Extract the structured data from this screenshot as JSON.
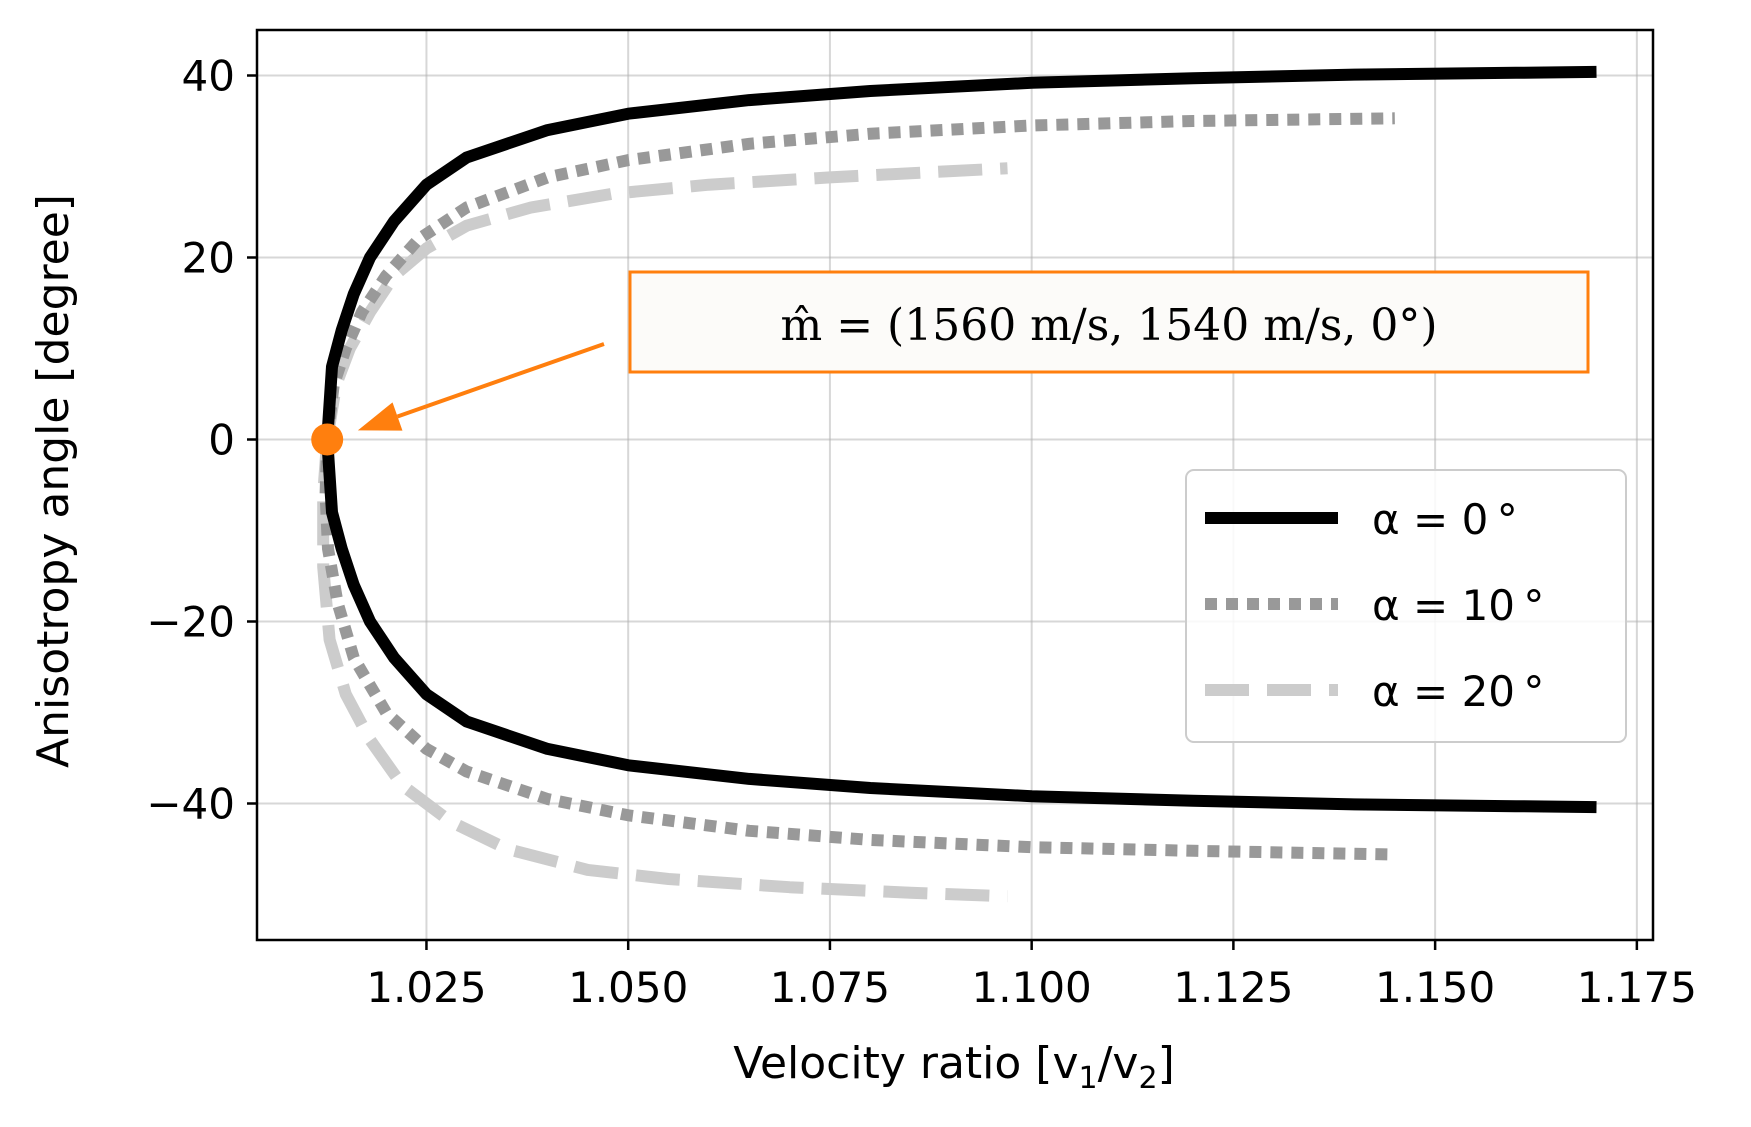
{
  "chart_data": {
    "type": "line",
    "xlabel": "Velocity ratio [v",
    "xlabel_sub1": "1",
    "xlabel_mid": "/v",
    "xlabel_sub2": "2",
    "xlabel_end": "]",
    "ylabel": "Anisotropy angle [degree]",
    "xlim": [
      1.004,
      1.177
    ],
    "ylim": [
      -55,
      45
    ],
    "xticks": [
      1.025,
      1.05,
      1.075,
      1.1,
      1.125,
      1.15,
      1.175
    ],
    "xtick_labels": [
      "1.025",
      "1.050",
      "1.075",
      "1.100",
      "1.125",
      "1.150",
      "1.175"
    ],
    "yticks": [
      40,
      20,
      0,
      -20,
      -40
    ],
    "ytick_labels": [
      "40",
      "20",
      "0",
      "−20",
      "−40"
    ],
    "grid": true,
    "legend_position": "center-right",
    "series": [
      {
        "name": "α = 0°",
        "legend_label": "α = 0 °",
        "color": "#000000",
        "style": "solid",
        "upper": {
          "x": [
            1.0127,
            1.0133,
            1.0145,
            1.016,
            1.018,
            1.021,
            1.025,
            1.03,
            1.04,
            1.05,
            1.065,
            1.08,
            1.1,
            1.12,
            1.14,
            1.16,
            1.17
          ],
          "y": [
            0,
            8,
            12,
            16,
            20,
            24,
            28,
            31,
            34,
            35.8,
            37.3,
            38.3,
            39.2,
            39.7,
            40.1,
            40.3,
            40.4
          ]
        },
        "lower": {
          "x": [
            1.0127,
            1.0133,
            1.0145,
            1.016,
            1.018,
            1.021,
            1.025,
            1.03,
            1.04,
            1.05,
            1.065,
            1.08,
            1.1,
            1.12,
            1.14,
            1.16,
            1.17
          ],
          "y": [
            0,
            -8,
            -12,
            -16,
            -20,
            -24,
            -28,
            -31,
            -34,
            -35.8,
            -37.3,
            -38.3,
            -39.2,
            -39.7,
            -40.1,
            -40.3,
            -40.4
          ]
        }
      },
      {
        "name": "α = 10°",
        "legend_label": "α = 10 °",
        "color": "#999999",
        "style": "dotted",
        "upper": {
          "x": [
            1.0127,
            1.0135,
            1.015,
            1.017,
            1.02,
            1.024,
            1.03,
            1.04,
            1.05,
            1.065,
            1.08,
            1.1,
            1.12,
            1.145
          ],
          "y": [
            0,
            6,
            10,
            14,
            18,
            22,
            25.5,
            28.8,
            30.7,
            32.5,
            33.6,
            34.5,
            35.0,
            35.3
          ]
        },
        "lower": {
          "x": [
            1.0127,
            1.0125,
            1.0128,
            1.014,
            1.016,
            1.02,
            1.025,
            1.03,
            1.04,
            1.05,
            1.065,
            1.08,
            1.1,
            1.12,
            1.145
          ],
          "y": [
            0,
            -6,
            -12,
            -18,
            -24,
            -30,
            -34,
            -36.5,
            -39.5,
            -41.3,
            -43,
            -44,
            -44.8,
            -45.2,
            -45.6
          ]
        }
      },
      {
        "name": "α = 20°",
        "legend_label": "α = 20 °",
        "color": "#cccccc",
        "style": "dashed",
        "upper": {
          "x": [
            1.0127,
            1.0138,
            1.0155,
            1.018,
            1.021,
            1.025,
            1.03,
            1.038,
            1.048,
            1.06,
            1.075,
            1.09,
            1.097
          ],
          "y": [
            0,
            6,
            10,
            14,
            18,
            21,
            23.5,
            25.5,
            27,
            28,
            28.8,
            29.5,
            29.8
          ]
        },
        "lower": {
          "x": [
            1.0127,
            1.0122,
            1.0122,
            1.013,
            1.015,
            1.018,
            1.022,
            1.028,
            1.035,
            1.045,
            1.055,
            1.07,
            1.085,
            1.097
          ],
          "y": [
            0,
            -6,
            -14,
            -22,
            -28,
            -33,
            -38,
            -42,
            -45,
            -47.3,
            -48.3,
            -49.2,
            -49.8,
            -50.2
          ]
        }
      }
    ],
    "marker": {
      "x": 1.0127,
      "y": 0,
      "color": "#ff7f0e"
    },
    "annotation": {
      "text": "m̂ = (1560 m/s, 1540 m/s, 0°)",
      "color": "#ff7f0e",
      "arrow_from": [
        1.047,
        10.5
      ],
      "arrow_to": [
        1.0165,
        1.0
      ]
    }
  }
}
